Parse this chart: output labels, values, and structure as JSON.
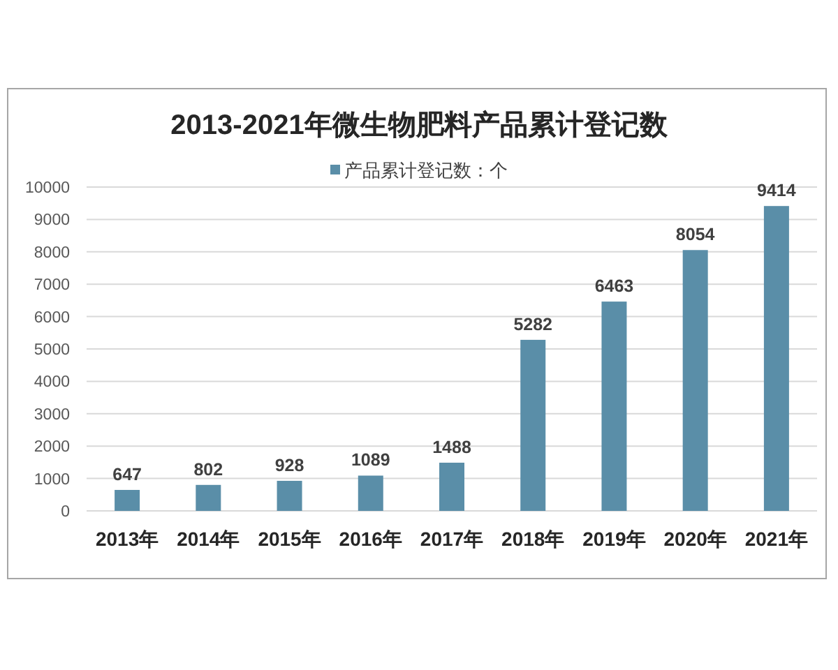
{
  "chart_data": {
    "type": "bar",
    "title": "2013-2021年微生物肥料产品累计登记数",
    "categories": [
      "2013年",
      "2014年",
      "2015年",
      "2016年",
      "2017年",
      "2018年",
      "2019年",
      "2020年",
      "2021年"
    ],
    "series": [
      {
        "name": "产品累计登记数：个",
        "color": "#5a8ea8",
        "values": [
          647,
          802,
          928,
          1089,
          1488,
          5282,
          6463,
          8054,
          9414
        ]
      }
    ],
    "ylim": [
      0,
      10000
    ],
    "yticks": [
      0,
      1000,
      2000,
      3000,
      4000,
      5000,
      6000,
      7000,
      8000,
      9000,
      10000
    ],
    "grid": "y",
    "legend": "top",
    "data_labels": true
  }
}
